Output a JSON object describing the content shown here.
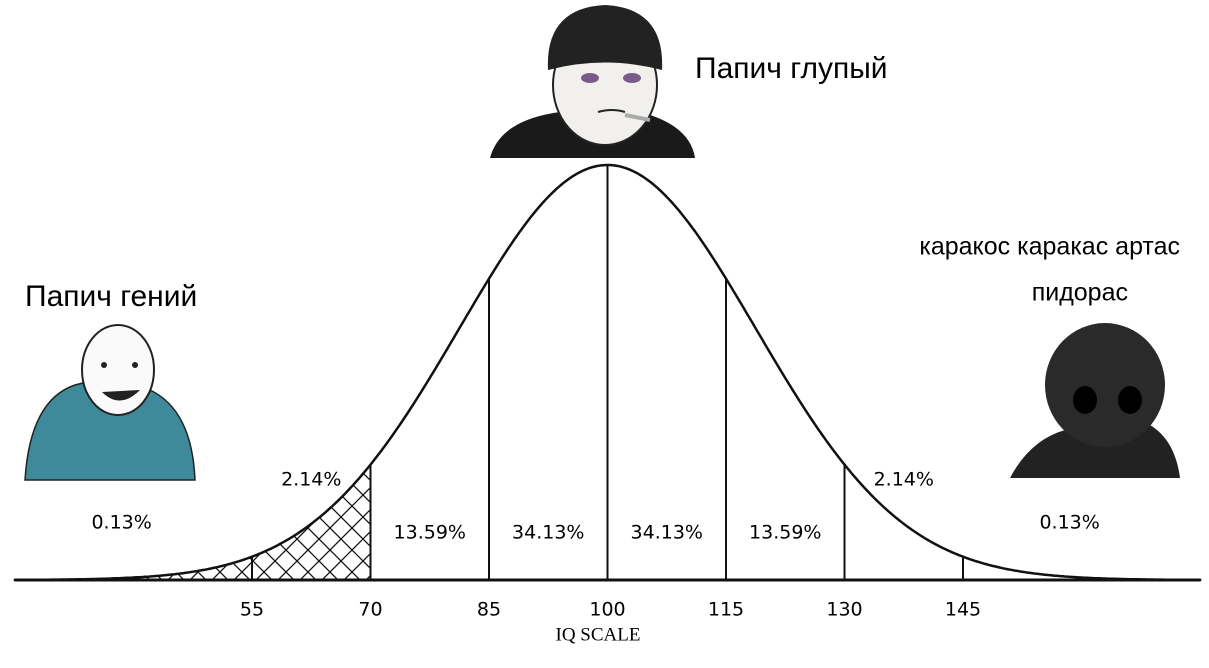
{
  "chart_data": {
    "type": "bell",
    "xlabel": "IQ SCALE",
    "xlim": [
      25,
      175
    ],
    "xticks": [
      55,
      70,
      85,
      100,
      115,
      130,
      145
    ],
    "regions": {
      "values": [
        0.13,
        2.14,
        13.59,
        34.13,
        34.13,
        13.59,
        2.14,
        0.13
      ],
      "value_labels": [
        "0.13%",
        "2.14%",
        "13.59%",
        "34.13%",
        "34.13%",
        "13.59%",
        "2.14%",
        "0.13%"
      ]
    },
    "hatched_regions": 2,
    "captions": {
      "top": "Папич глупый",
      "left": "Папич гений",
      "right": [
        "каракос каракас артас",
        "пидорас"
      ]
    }
  }
}
